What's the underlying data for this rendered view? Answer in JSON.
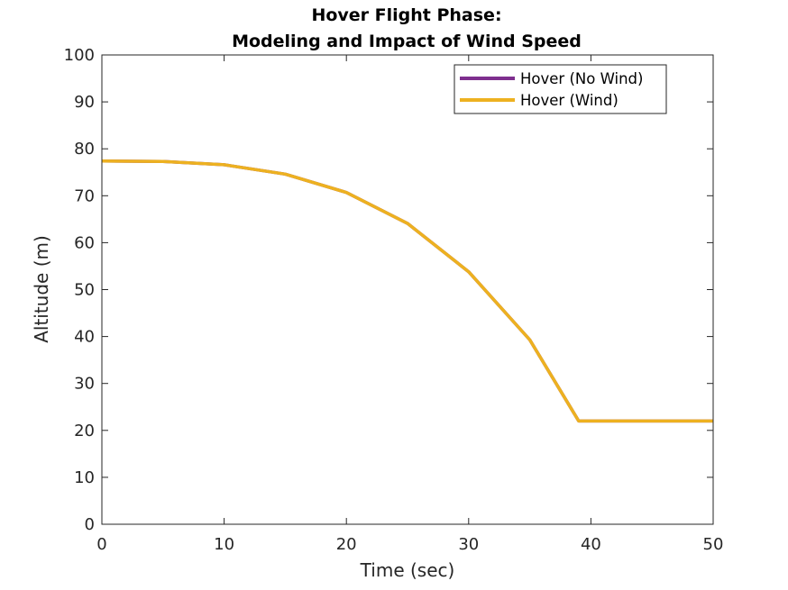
{
  "chart_data": {
    "type": "line",
    "title": [
      "Hover Flight Phase:",
      "Modeling and Impact of Wind Speed"
    ],
    "xlabel": "Time (sec)",
    "ylabel": "Altitude (m)",
    "xlim": [
      0,
      50
    ],
    "ylim": [
      0,
      100
    ],
    "xticks": [
      0,
      10,
      20,
      30,
      40,
      50
    ],
    "yticks": [
      0,
      10,
      20,
      30,
      40,
      50,
      60,
      70,
      80,
      90,
      100
    ],
    "xtick_labels": [
      "0",
      "10",
      "20",
      "30",
      "40",
      "50"
    ],
    "ytick_labels": [
      "0",
      "10",
      "20",
      "30",
      "40",
      "50",
      "60",
      "70",
      "80",
      "90",
      "100"
    ],
    "grid": false,
    "legend_position": "top-right",
    "series": [
      {
        "name": "Hover (No Wind)",
        "color": "#7e2f8e",
        "x": [
          0,
          5,
          10,
          15,
          20,
          25,
          30,
          35,
          39,
          50
        ],
        "y": [
          77.4,
          77.3,
          76.6,
          74.6,
          70.7,
          64.1,
          53.8,
          39.3,
          22.0,
          22.0
        ]
      },
      {
        "name": "Hover (Wind)",
        "color": "#edb120",
        "x": [
          0,
          5,
          10,
          15,
          20,
          25,
          30,
          35,
          39,
          50
        ],
        "y": [
          77.4,
          77.3,
          76.6,
          74.6,
          70.7,
          64.1,
          53.8,
          39.3,
          22.0,
          22.0
        ]
      }
    ]
  }
}
